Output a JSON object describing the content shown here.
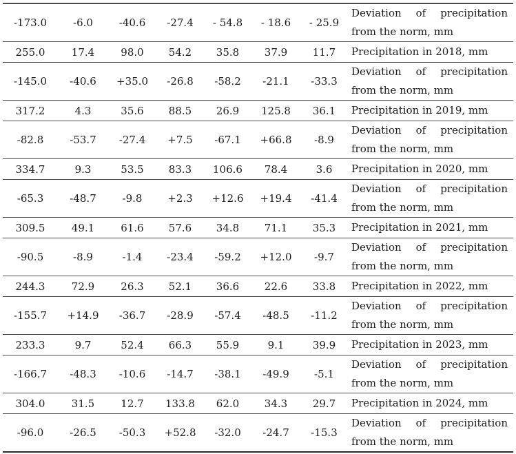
{
  "table": {
    "columns": 8,
    "rows": [
      {
        "type": "deviation",
        "values": [
          "-173.0",
          "-6.0",
          "-40.6",
          "-27.4",
          "- 54.8",
          "- 18.6",
          "- 25.9"
        ],
        "label": "Deviation of precipitation from the norm, mm"
      },
      {
        "type": "precipitation",
        "values": [
          "255.0",
          "17.4",
          "98.0",
          "54.2",
          "35.8",
          "37.9",
          "11.7"
        ],
        "label": "Precipitation in 2018, mm"
      },
      {
        "type": "deviation",
        "values": [
          "-145.0",
          "-40.6",
          "+35.0",
          "-26.8",
          "-58.2",
          "-21.1",
          "-33.3"
        ],
        "label": "Deviation of precipitation from the norm, mm"
      },
      {
        "type": "precipitation",
        "values": [
          "317.2",
          "4.3",
          "35.6",
          "88.5",
          "26.9",
          "125.8",
          "36.1"
        ],
        "label": "Precipitation in 2019, mm"
      },
      {
        "type": "deviation",
        "values": [
          "-82.8",
          "-53.7",
          "-27.4",
          "+7.5",
          "-67.1",
          "+66.8",
          "-8.9"
        ],
        "label": "Deviation of precipitation from the norm, mm"
      },
      {
        "type": "precipitation",
        "values": [
          "334.7",
          "9.3",
          "53.5",
          "83.3",
          "106.6",
          "78.4",
          "3.6"
        ],
        "label": "Precipitation in 2020, mm"
      },
      {
        "type": "deviation",
        "values": [
          "-65.3",
          "-48.7",
          "-9.8",
          "+2.3",
          "+12.6",
          "+19.4",
          "-41.4"
        ],
        "label": "Deviation of precipitation from the norm, mm"
      },
      {
        "type": "precipitation",
        "values": [
          "309.5",
          "49.1",
          "61.6",
          "57.6",
          "34.8",
          "71.1",
          "35.3"
        ],
        "label": "Precipitation in 2021, mm"
      },
      {
        "type": "deviation",
        "values": [
          "-90.5",
          "-8.9",
          "-1.4",
          "-23.4",
          "-59.2",
          "+12.0",
          "-9.7"
        ],
        "label": "Deviation of precipitation from the norm, mm"
      },
      {
        "type": "precipitation",
        "values": [
          "244.3",
          "72.9",
          "26.3",
          "52.1",
          "36.6",
          "22.6",
          "33.8"
        ],
        "label": "Precipitation in 2022, mm"
      },
      {
        "type": "deviation",
        "values": [
          "-155.7",
          "+14.9",
          "-36.7",
          "-28.9",
          "-57.4",
          "-48.5",
          "-11.2"
        ],
        "label": "Deviation of precipitation from the norm, mm"
      },
      {
        "type": "precipitation",
        "values": [
          "233.3",
          "9.7",
          "52.4",
          "66.3",
          "55.9",
          "9.1",
          "39.9"
        ],
        "label": "Precipitation in 2023, mm"
      },
      {
        "type": "deviation",
        "values": [
          "-166.7",
          "-48.3",
          "-10.6",
          "-14.7",
          "-38.1",
          "-49.9",
          "-5.1"
        ],
        "label": "Deviation of precipitation from the norm, mm"
      },
      {
        "type": "precipitation",
        "values": [
          "304.0",
          "31.5",
          "12.7",
          "133.8",
          "62.0",
          "34.3",
          "29.7"
        ],
        "label": "Precipitation in 2024, mm"
      },
      {
        "type": "deviation",
        "values": [
          "-96.0",
          "-26.5",
          "-50.3",
          "+52.8",
          "-32.0",
          "-24.7",
          "-15.3"
        ],
        "label": "Deviation of precipitation from the norm, mm"
      }
    ],
    "colors": {
      "text": "#1c1c1c",
      "rule": "#4a4a4a",
      "heavy_rule": "#2b2b2b",
      "background": "#ffffff"
    }
  }
}
